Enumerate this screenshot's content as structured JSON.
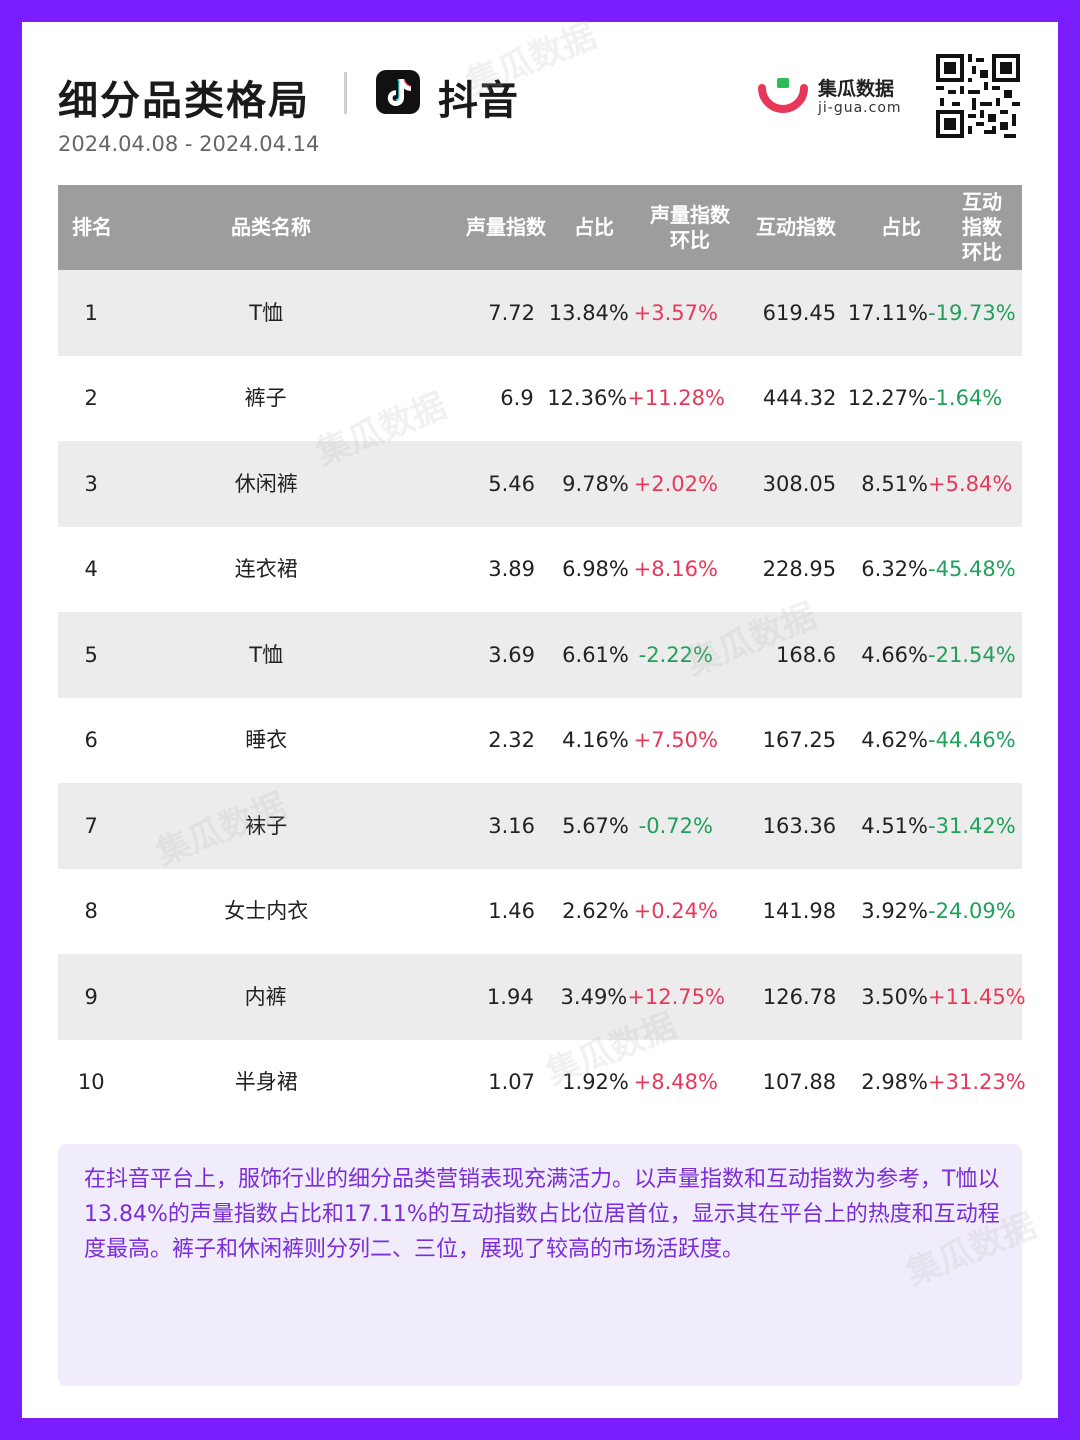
{
  "header": {
    "title": "细分品类格局",
    "platform_name": "抖音",
    "date_range": "2024.04.08 - 2024.04.14",
    "logo_name": "集瓜数据",
    "logo_domain": "ji-gua.com",
    "watermark_text": "集瓜数据",
    "icons": [
      "douyin-icon",
      "jigua-logo-icon",
      "qr-code-icon"
    ]
  },
  "colors": {
    "border": "#7a1dff",
    "header_row": "#9d9d9d",
    "positive": "#e8385a",
    "negative": "#20a05a",
    "summary_bg": "#f1ecfb",
    "summary_text": "#7a2dd8"
  },
  "table": {
    "headers": {
      "rank": "排名",
      "name": "品类名称",
      "volume": "声量指数",
      "volume_share": "占比",
      "volume_change_1": "声量指数",
      "volume_change_2": "环比",
      "interaction": "互动指数",
      "interaction_share": "占比",
      "interaction_change_1": "互动指数",
      "interaction_change_2": "环比"
    },
    "rows": [
      {
        "rank": "1",
        "name": "T恤",
        "volume": "7.72",
        "volume_share": "13.84%",
        "volume_change": "+3.57%",
        "interaction": "619.45",
        "interaction_share": "17.11%",
        "interaction_change": "-19.73%"
      },
      {
        "rank": "2",
        "name": "裤子",
        "volume": "6.9",
        "volume_share": "12.36%",
        "volume_change": "+11.28%",
        "interaction": "444.32",
        "interaction_share": "12.27%",
        "interaction_change": "-1.64%"
      },
      {
        "rank": "3",
        "name": "休闲裤",
        "volume": "5.46",
        "volume_share": "9.78%",
        "volume_change": "+2.02%",
        "interaction": "308.05",
        "interaction_share": "8.51%",
        "interaction_change": "+5.84%"
      },
      {
        "rank": "4",
        "name": "连衣裙",
        "volume": "3.89",
        "volume_share": "6.98%",
        "volume_change": "+8.16%",
        "interaction": "228.95",
        "interaction_share": "6.32%",
        "interaction_change": "-45.48%"
      },
      {
        "rank": "5",
        "name": "T恤",
        "volume": "3.69",
        "volume_share": "6.61%",
        "volume_change": "-2.22%",
        "interaction": "168.6",
        "interaction_share": "4.66%",
        "interaction_change": "-21.54%"
      },
      {
        "rank": "6",
        "name": "睡衣",
        "volume": "2.32",
        "volume_share": "4.16%",
        "volume_change": "+7.50%",
        "interaction": "167.25",
        "interaction_share": "4.62%",
        "interaction_change": "-44.46%"
      },
      {
        "rank": "7",
        "name": "袜子",
        "volume": "3.16",
        "volume_share": "5.67%",
        "volume_change": "-0.72%",
        "interaction": "163.36",
        "interaction_share": "4.51%",
        "interaction_change": "-31.42%"
      },
      {
        "rank": "8",
        "name": "女士内衣",
        "volume": "1.46",
        "volume_share": "2.62%",
        "volume_change": "+0.24%",
        "interaction": "141.98",
        "interaction_share": "3.92%",
        "interaction_change": "-24.09%"
      },
      {
        "rank": "9",
        "name": "内裤",
        "volume": "1.94",
        "volume_share": "3.49%",
        "volume_change": "+12.75%",
        "interaction": "126.78",
        "interaction_share": "3.50%",
        "interaction_change": "+11.45%"
      },
      {
        "rank": "10",
        "name": "半身裙",
        "volume": "1.07",
        "volume_share": "1.92%",
        "volume_change": "+8.48%",
        "interaction": "107.88",
        "interaction_share": "2.98%",
        "interaction_change": "+31.23%"
      }
    ]
  },
  "summary": {
    "text": "在抖音平台上，服饰行业的细分品类营销表现充满活力。以声量指数和互动指数为参考，T恤以13.84%的声量指数占比和17.11%的互动指数占比位居首位，显示其在平台上的热度和互动程度最高。裤子和休闲裤则分列二、三位，展现了较高的市场活跃度。"
  }
}
